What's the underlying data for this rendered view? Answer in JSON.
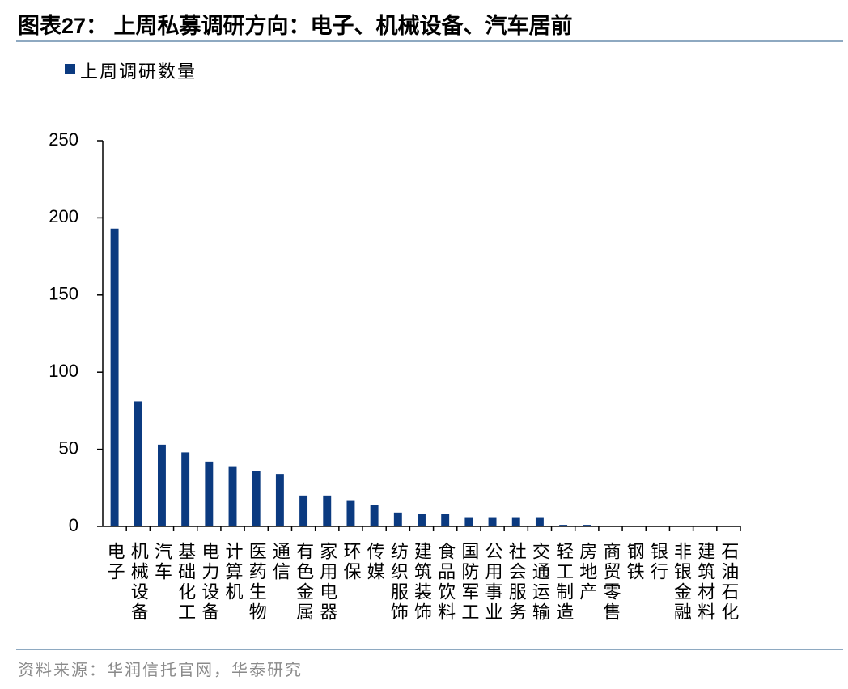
{
  "chart_data": {
    "type": "bar",
    "title": "图表27： 上周私募调研方向：电子、机械设备、汽车居前",
    "legend_label": "上周调研数量",
    "source": "资料来源：华润信托官网，华泰研究",
    "categories": [
      "电子",
      "机械设备",
      "汽车",
      "基础化工",
      "电力设备",
      "计算机",
      "医药生物",
      "通信",
      "有色金属",
      "家用电器",
      "环保",
      "传媒",
      "纺织服饰",
      "建筑装饰",
      "食品饮料",
      "国防军工",
      "公用事业",
      "社会服务",
      "交通运输",
      "轻工制造",
      "房地产",
      "商贸零售",
      "钢铁",
      "银行",
      "非银金融",
      "建筑材料",
      "石油石化"
    ],
    "values": [
      193,
      81,
      53,
      48,
      42,
      39,
      36,
      34,
      20,
      20,
      17,
      14,
      9,
      8,
      8,
      6,
      6,
      6,
      6,
      1,
      1,
      0,
      0,
      0,
      0,
      0,
      0
    ],
    "color": "#0b3a80",
    "ylim": [
      0,
      250
    ],
    "yticks": [
      0,
      50,
      100,
      150,
      200,
      250
    ]
  }
}
